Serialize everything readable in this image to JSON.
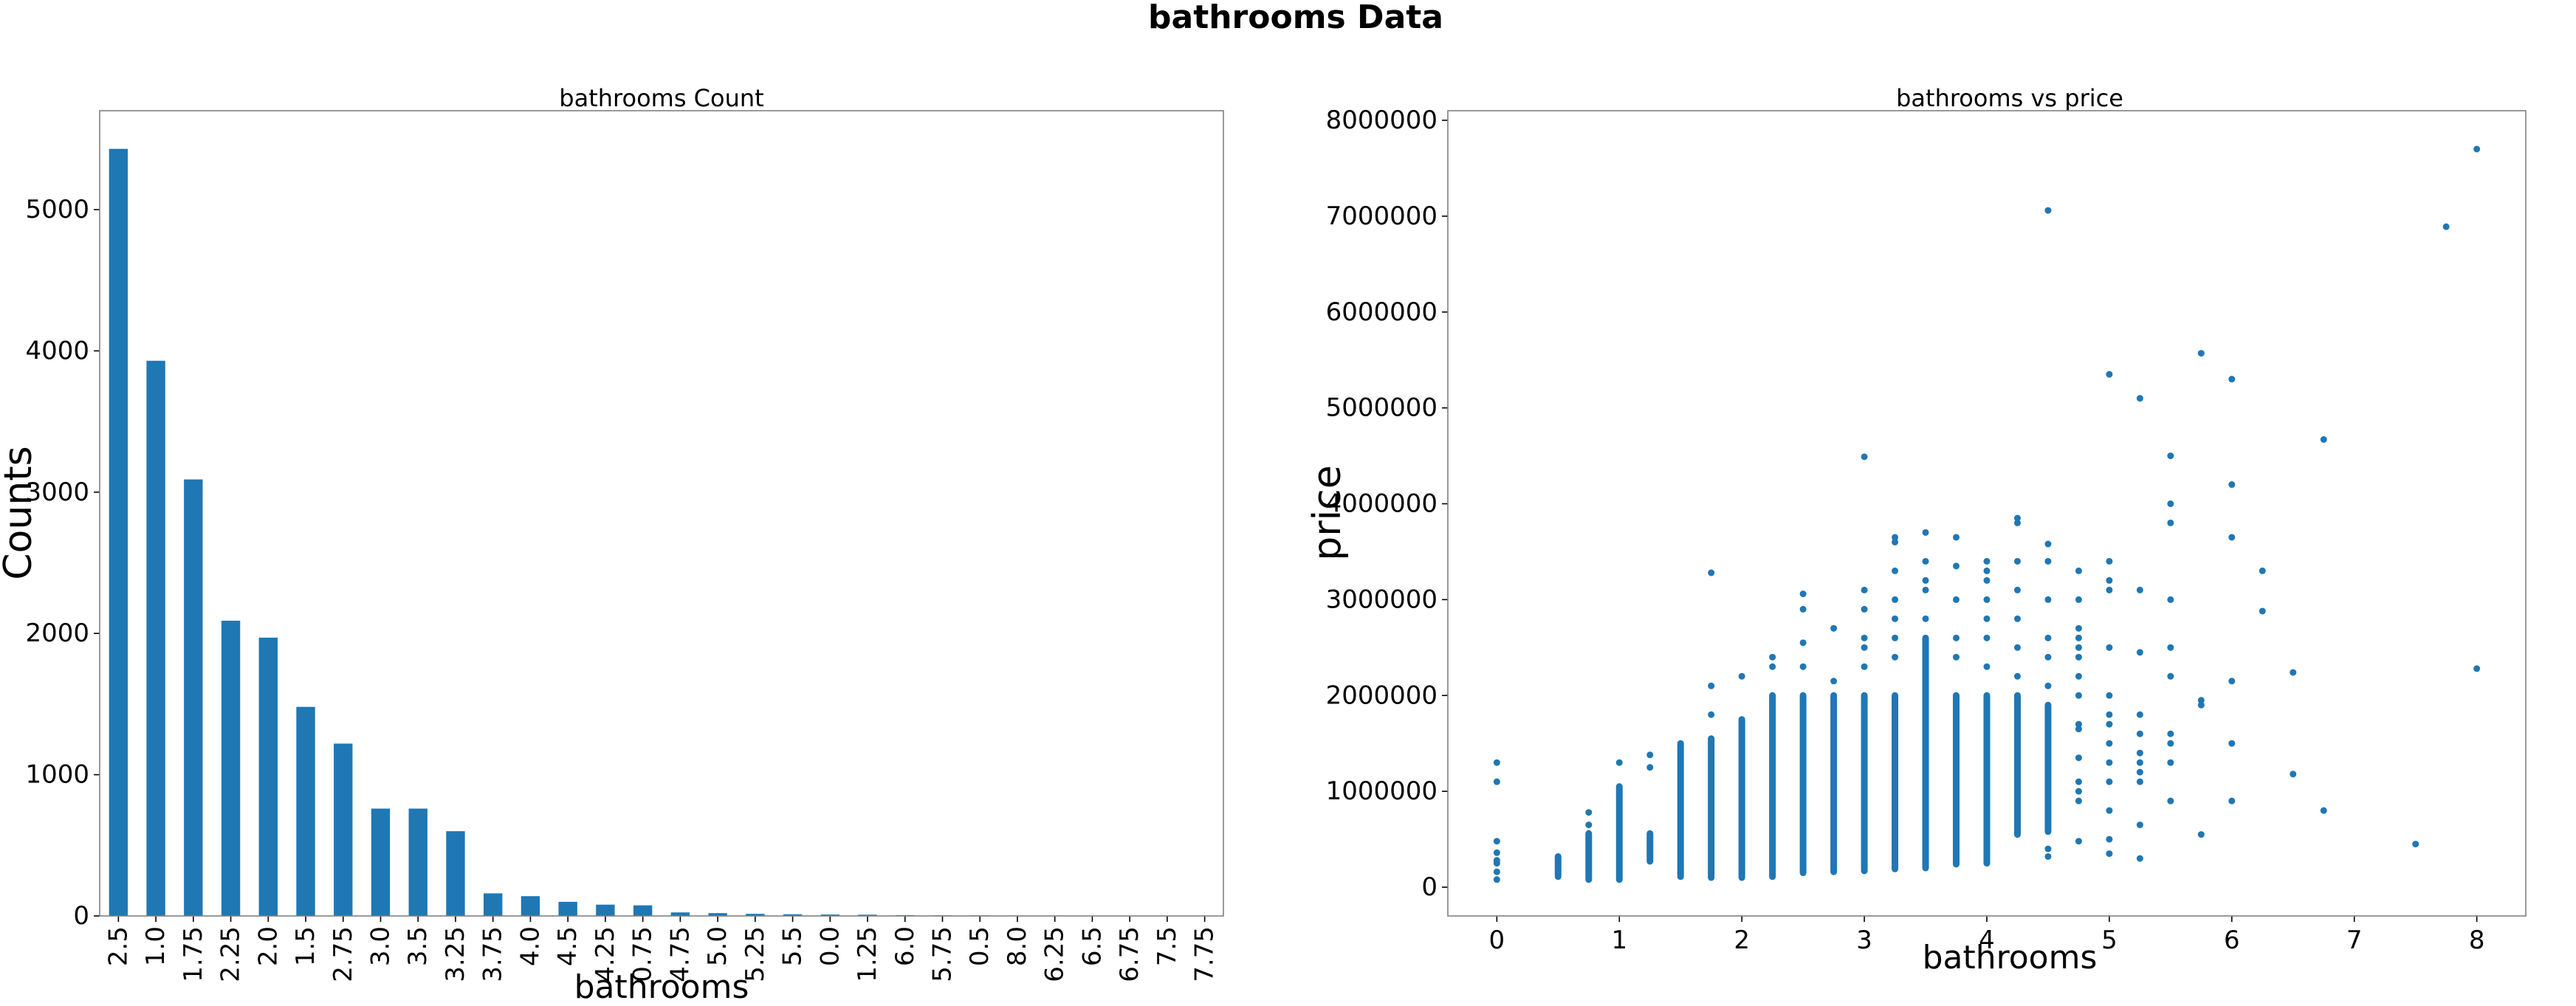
{
  "suptitle": "bathrooms Data",
  "colors": {
    "bar": "#1f77b4",
    "point": "#1f77b4",
    "axes_edge": "#808080",
    "text": "#000000"
  },
  "chart_data": [
    {
      "type": "bar",
      "title": "bathrooms Count",
      "xlabel": "bathrooms",
      "ylabel": "Counts",
      "categories": [
        "2.5",
        "1.0",
        "1.75",
        "2.25",
        "2.0",
        "1.5",
        "2.75",
        "3.0",
        "3.5",
        "3.25",
        "3.75",
        "4.0",
        "4.5",
        "4.25",
        "0.75",
        "4.75",
        "5.0",
        "5.25",
        "5.5",
        "0.0",
        "1.25",
        "6.0",
        "5.75",
        "0.5",
        "8.0",
        "6.25",
        "6.5",
        "6.75",
        "7.5",
        "7.75"
      ],
      "values": [
        5430,
        3930,
        3090,
        2090,
        1970,
        1480,
        1220,
        760,
        760,
        600,
        160,
        140,
        100,
        80,
        75,
        25,
        20,
        15,
        12,
        10,
        9,
        6,
        4,
        4,
        2,
        2,
        2,
        2,
        1,
        1
      ],
      "ylim": [
        0,
        5700
      ],
      "yticks": [
        0,
        1000,
        2000,
        3000,
        4000,
        5000
      ],
      "grid": false,
      "legend": "none"
    },
    {
      "type": "scatter",
      "title": "bathrooms vs price",
      "xlabel": "bathrooms",
      "ylabel": "price",
      "xlim": [
        -0.4,
        8.4
      ],
      "ylim": [
        -300000,
        8100000
      ],
      "xticks": [
        0,
        1,
        2,
        3,
        4,
        5,
        6,
        7,
        8
      ],
      "yticks": [
        0,
        1000000,
        2000000,
        3000000,
        4000000,
        5000000,
        6000000,
        7000000,
        8000000
      ],
      "grid": false,
      "legend": "none",
      "ranges": [
        {
          "x": 0.5,
          "min": 130000,
          "max": 320000
        },
        {
          "x": 0.75,
          "min": 80000,
          "max": 560000
        },
        {
          "x": 1.0,
          "min": 80000,
          "max": 1050000
        },
        {
          "x": 1.25,
          "min": 270000,
          "max": 560000
        },
        {
          "x": 1.5,
          "min": 110000,
          "max": 1500000
        },
        {
          "x": 1.75,
          "min": 100000,
          "max": 1550000
        },
        {
          "x": 2.0,
          "min": 100000,
          "max": 1750000
        },
        {
          "x": 2.25,
          "min": 110000,
          "max": 2000000
        },
        {
          "x": 2.5,
          "min": 150000,
          "max": 2000000
        },
        {
          "x": 2.75,
          "min": 160000,
          "max": 2000000
        },
        {
          "x": 3.0,
          "min": 170000,
          "max": 2000000
        },
        {
          "x": 3.25,
          "min": 190000,
          "max": 2000000
        },
        {
          "x": 3.5,
          "min": 200000,
          "max": 2600000
        },
        {
          "x": 3.75,
          "min": 240000,
          "max": 2000000
        },
        {
          "x": 4.0,
          "min": 250000,
          "max": 2000000
        },
        {
          "x": 4.25,
          "min": 550000,
          "max": 2000000
        },
        {
          "x": 4.5,
          "min": 580000,
          "max": 1900000
        }
      ],
      "points": [
        [
          0.0,
          80000
        ],
        [
          0.0,
          160000
        ],
        [
          0.0,
          250000
        ],
        [
          0.0,
          280000
        ],
        [
          0.0,
          360000
        ],
        [
          0.0,
          480000
        ],
        [
          0.0,
          1100000
        ],
        [
          0.0,
          1300000
        ],
        [
          0.5,
          110000
        ],
        [
          0.5,
          310000
        ],
        [
          0.75,
          650000
        ],
        [
          0.75,
          780000
        ],
        [
          1.0,
          1300000
        ],
        [
          1.25,
          1250000
        ],
        [
          1.25,
          1380000
        ],
        [
          1.5,
          210000
        ],
        [
          1.75,
          1800000
        ],
        [
          1.75,
          2100000
        ],
        [
          1.75,
          3280000
        ],
        [
          2.0,
          2200000
        ],
        [
          2.25,
          2300000
        ],
        [
          2.25,
          2400000
        ],
        [
          2.5,
          2300000
        ],
        [
          2.5,
          2550000
        ],
        [
          2.5,
          2900000
        ],
        [
          2.5,
          3060000
        ],
        [
          2.75,
          2150000
        ],
        [
          2.75,
          2700000
        ],
        [
          3.0,
          2300000
        ],
        [
          3.0,
          2500000
        ],
        [
          3.0,
          2600000
        ],
        [
          3.0,
          2900000
        ],
        [
          3.0,
          3100000
        ],
        [
          3.0,
          4490000
        ],
        [
          3.25,
          2400000
        ],
        [
          3.25,
          2600000
        ],
        [
          3.25,
          2800000
        ],
        [
          3.25,
          3000000
        ],
        [
          3.25,
          3300000
        ],
        [
          3.25,
          3600000
        ],
        [
          3.25,
          3650000
        ],
        [
          3.5,
          2800000
        ],
        [
          3.5,
          3100000
        ],
        [
          3.5,
          3200000
        ],
        [
          3.5,
          3400000
        ],
        [
          3.5,
          3700000
        ],
        [
          3.75,
          2400000
        ],
        [
          3.75,
          2600000
        ],
        [
          3.75,
          3000000
        ],
        [
          3.75,
          3350000
        ],
        [
          3.75,
          3650000
        ],
        [
          4.0,
          2300000
        ],
        [
          4.0,
          2600000
        ],
        [
          4.0,
          2800000
        ],
        [
          4.0,
          3000000
        ],
        [
          4.0,
          3200000
        ],
        [
          4.0,
          3300000
        ],
        [
          4.0,
          3400000
        ],
        [
          4.25,
          2200000
        ],
        [
          4.25,
          2500000
        ],
        [
          4.25,
          2800000
        ],
        [
          4.25,
          3100000
        ],
        [
          4.25,
          3400000
        ],
        [
          4.25,
          3800000
        ],
        [
          4.25,
          3850000
        ],
        [
          4.5,
          320000
        ],
        [
          4.5,
          400000
        ],
        [
          4.5,
          2100000
        ],
        [
          4.5,
          2400000
        ],
        [
          4.5,
          2600000
        ],
        [
          4.5,
          3000000
        ],
        [
          4.5,
          3400000
        ],
        [
          4.5,
          3580000
        ],
        [
          4.5,
          7060000
        ],
        [
          4.75,
          480000
        ],
        [
          4.75,
          900000
        ],
        [
          4.75,
          1000000
        ],
        [
          4.75,
          1100000
        ],
        [
          4.75,
          1350000
        ],
        [
          4.75,
          1650000
        ],
        [
          4.75,
          1700000
        ],
        [
          4.75,
          2000000
        ],
        [
          4.75,
          2200000
        ],
        [
          4.75,
          2400000
        ],
        [
          4.75,
          2500000
        ],
        [
          4.75,
          2600000
        ],
        [
          4.75,
          2700000
        ],
        [
          4.75,
          3000000
        ],
        [
          4.75,
          3300000
        ],
        [
          5.0,
          350000
        ],
        [
          5.0,
          500000
        ],
        [
          5.0,
          800000
        ],
        [
          5.0,
          1100000
        ],
        [
          5.0,
          1300000
        ],
        [
          5.0,
          1500000
        ],
        [
          5.0,
          1700000
        ],
        [
          5.0,
          1800000
        ],
        [
          5.0,
          2000000
        ],
        [
          5.0,
          2500000
        ],
        [
          5.0,
          3100000
        ],
        [
          5.0,
          3200000
        ],
        [
          5.0,
          3400000
        ],
        [
          5.0,
          5350000
        ],
        [
          5.25,
          300000
        ],
        [
          5.25,
          650000
        ],
        [
          5.25,
          1100000
        ],
        [
          5.25,
          1200000
        ],
        [
          5.25,
          1300000
        ],
        [
          5.25,
          1400000
        ],
        [
          5.25,
          1600000
        ],
        [
          5.25,
          1800000
        ],
        [
          5.25,
          2450000
        ],
        [
          5.25,
          3100000
        ],
        [
          5.25,
          5100000
        ],
        [
          5.5,
          900000
        ],
        [
          5.5,
          1300000
        ],
        [
          5.5,
          1500000
        ],
        [
          5.5,
          1600000
        ],
        [
          5.5,
          2200000
        ],
        [
          5.5,
          2500000
        ],
        [
          5.5,
          3000000
        ],
        [
          5.5,
          3800000
        ],
        [
          5.5,
          4000000
        ],
        [
          5.5,
          4500000
        ],
        [
          5.75,
          550000
        ],
        [
          5.75,
          1900000
        ],
        [
          5.75,
          1950000
        ],
        [
          5.75,
          5570000
        ],
        [
          6.0,
          900000
        ],
        [
          6.0,
          1500000
        ],
        [
          6.0,
          2150000
        ],
        [
          6.0,
          3650000
        ],
        [
          6.0,
          4200000
        ],
        [
          6.0,
          5300000
        ],
        [
          6.25,
          2880000
        ],
        [
          6.25,
          3300000
        ],
        [
          6.5,
          1180000
        ],
        [
          6.5,
          2240000
        ],
        [
          6.75,
          800000
        ],
        [
          6.75,
          4670000
        ],
        [
          7.5,
          450000
        ],
        [
          7.75,
          6890000
        ],
        [
          8.0,
          2280000
        ],
        [
          8.0,
          7700000
        ]
      ]
    }
  ]
}
